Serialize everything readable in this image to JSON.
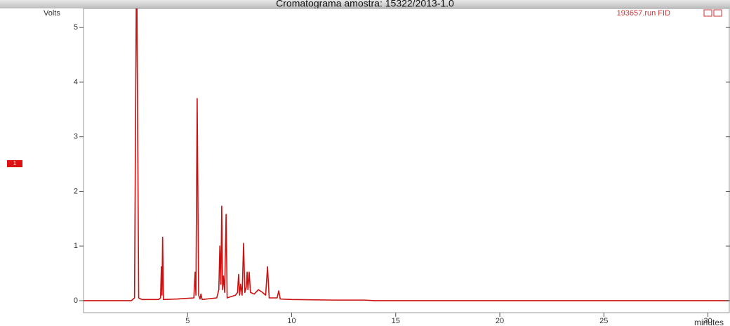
{
  "chart_data": {
    "type": "line",
    "title": "Cromatograma amostra: 15322/2013-1.0",
    "y_label": "Volts",
    "x_label": "minutes",
    "trace_marker": "1",
    "xlim": [
      0,
      31.06
    ],
    "ylim": [
      -0.22,
      5.35
    ],
    "xticks": [
      5,
      10,
      15,
      20,
      25,
      30
    ],
    "yticks": [
      0,
      1,
      2,
      3,
      4,
      5
    ],
    "series": [
      {
        "name": "193657.run FID",
        "color": "#cc1111",
        "x": [
          0,
          2.3,
          2.45,
          2.55,
          2.65,
          2.8,
          3.6,
          3.7,
          3.74,
          3.77,
          3.8,
          3.84,
          4.5,
          5.3,
          5.36,
          5.4,
          5.46,
          5.53,
          5.6,
          5.64,
          5.7,
          6.4,
          6.5,
          6.55,
          6.6,
          6.64,
          6.68,
          6.72,
          6.78,
          6.85,
          6.9,
          7.3,
          7.4,
          7.45,
          7.5,
          7.55,
          7.62,
          7.69,
          7.75,
          7.82,
          7.86,
          7.9,
          7.96,
          8.02,
          8.2,
          8.4,
          8.6,
          8.75,
          8.84,
          8.92,
          9.3,
          9.38,
          9.45,
          10,
          12,
          13.5,
          14,
          31
        ],
        "values": [
          0,
          0,
          0.05,
          6.5,
          0.05,
          0.02,
          0.02,
          0.05,
          0.62,
          0.1,
          1.16,
          0.02,
          0.03,
          0.05,
          0.52,
          0.1,
          3.7,
          0.1,
          0.03,
          0.12,
          0.02,
          0.05,
          0.2,
          1.0,
          0.3,
          1.73,
          0.2,
          0.45,
          0.15,
          1.58,
          0.05,
          0.1,
          0.15,
          0.48,
          0.1,
          0.3,
          0.1,
          1.05,
          0.15,
          0.25,
          0.52,
          0.2,
          0.52,
          0.15,
          0.12,
          0.2,
          0.15,
          0.1,
          0.62,
          0.05,
          0.05,
          0.18,
          0.03,
          0.02,
          0.01,
          0.01,
          0,
          0
        ]
      }
    ]
  }
}
